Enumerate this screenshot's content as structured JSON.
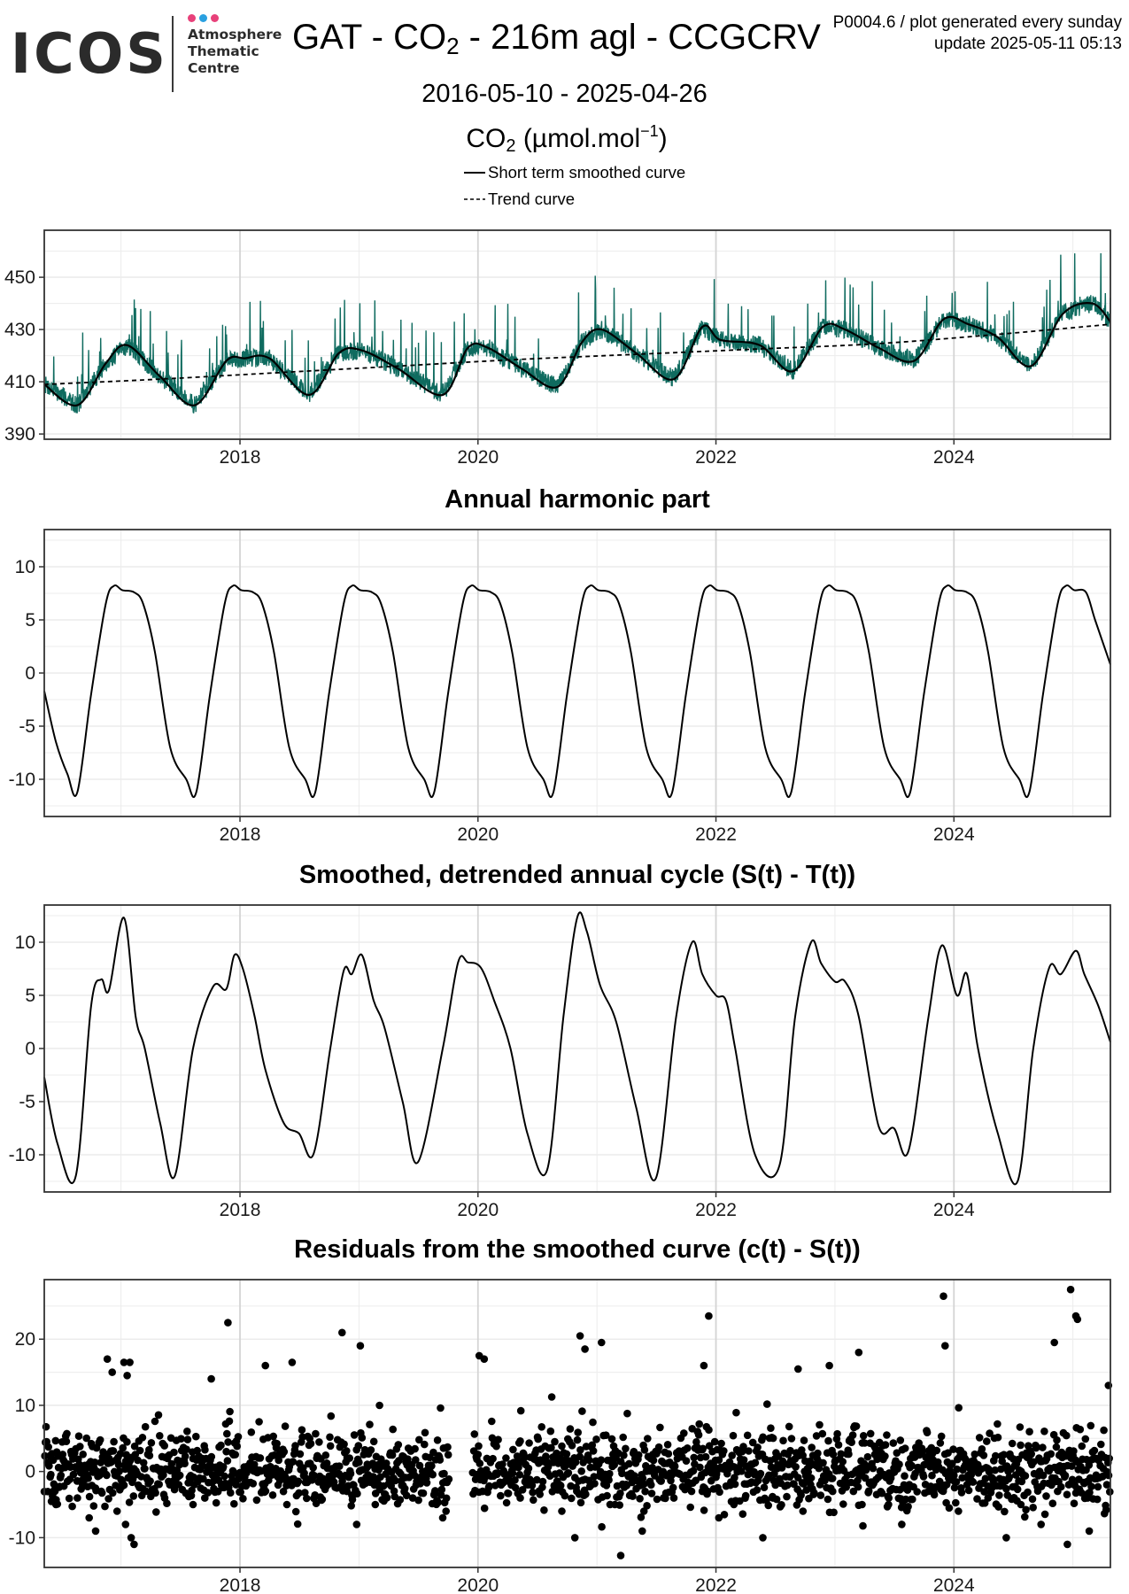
{
  "header": {
    "logo_text": "ICOS",
    "logo_subtitle": "Atmosphere\nThematic\nCentre",
    "logo_dot_colors": [
      "#e8417a",
      "#2aa0e0",
      "#e8417a"
    ],
    "title_prefix": "GAT - CO",
    "title_sub": "2",
    "title_suffix": " - 216m agl - CCGCRV",
    "meta_line1": "P0004.6 / plot generated every sunday",
    "meta_line2": "update  2025-05-11 05:13",
    "date_range": "2016-05-10 - 2025-04-26",
    "unit_prefix": "CO",
    "unit_sub": "2",
    "unit_mid": " (µmol.mol",
    "unit_sup": "−1",
    "unit_suffix": ")"
  },
  "legend": {
    "items": [
      {
        "label": "Short term smoothed curve",
        "style": "solid"
      },
      {
        "label": "Trend curve",
        "style": "dashed"
      }
    ]
  },
  "colors": {
    "raw_series": "#0f6b5f",
    "curve": "#000000",
    "grid_major": "#d4d4d4",
    "grid_minor": "#ececec",
    "border": "#333333"
  },
  "chart_data": [
    {
      "id": "co2",
      "type": "line",
      "title": "",
      "xlabel": "",
      "ylabel": "",
      "xlim": [
        "2016-05-10",
        "2025-04-26"
      ],
      "ylim": [
        388,
        468
      ],
      "yticks": [
        390,
        410,
        430,
        450
      ],
      "xticks": [
        "2018",
        "2020",
        "2022",
        "2024"
      ],
      "grid": true,
      "series": [
        {
          "name": "Short term smoothed curve",
          "style": "solid",
          "x": [
            "2016-05-10",
            "2016-08-20",
            "2016-11-15",
            "2017-01-20",
            "2017-05-01",
            "2017-08-15",
            "2017-11-20",
            "2018-01-15",
            "2018-04-01",
            "2018-08-01",
            "2018-11-01",
            "2019-01-10",
            "2019-05-01",
            "2019-09-15",
            "2019-12-01",
            "2020-02-01",
            "2020-05-15",
            "2020-09-01",
            "2020-11-15",
            "2021-01-15",
            "2021-05-01",
            "2021-08-25",
            "2021-11-20",
            "2022-01-15",
            "2022-05-15",
            "2022-08-25",
            "2022-11-25",
            "2023-02-01",
            "2023-05-15",
            "2023-09-01",
            "2023-12-01",
            "2024-02-15",
            "2024-05-15",
            "2024-08-25",
            "2024-12-01",
            "2025-03-01",
            "2025-04-26"
          ],
          "y": [
            409,
            401,
            417,
            424,
            412,
            401,
            418,
            419,
            419,
            405,
            421,
            422,
            415,
            405,
            423,
            423,
            415,
            408,
            425,
            430,
            421,
            411,
            431,
            426,
            424,
            414,
            431,
            430,
            423,
            418,
            434,
            432,
            427,
            416,
            436,
            440,
            433
          ]
        },
        {
          "name": "Trend curve",
          "style": "dashed",
          "x": [
            "2016-05-10",
            "2017-05-01",
            "2018-05-01",
            "2019-05-01",
            "2020-05-01",
            "2021-05-01",
            "2022-05-01",
            "2023-05-01",
            "2024-05-01",
            "2025-04-26"
          ],
          "y": [
            409,
            411,
            413.5,
            416,
            418.5,
            420.5,
            422.5,
            424.5,
            428,
            432
          ]
        }
      ]
    },
    {
      "id": "harmonic",
      "type": "line",
      "title": "Annual harmonic part",
      "xlabel": "",
      "ylabel": "",
      "xlim": [
        "2016-05-10",
        "2025-04-26"
      ],
      "ylim": [
        -13.5,
        13.5
      ],
      "yticks": [
        -10,
        -5,
        0,
        5,
        10
      ],
      "xticks": [
        "2018",
        "2020",
        "2022",
        "2024"
      ],
      "grid": true,
      "series": [
        {
          "x": [
            "2016-05-10",
            "2016-06-15",
            "2016-07-20",
            "2016-08-20",
            "2016-10-01",
            "2016-11-15",
            "2016-12-10",
            "2017-01-05",
            "2017-02-10",
            "2017-03-10",
            "2017-04-15",
            "2017-06-01",
            "2017-07-20",
            "2017-08-20",
            "2017-10-01",
            "2017-11-15",
            "2017-12-10",
            "2018-01-05",
            "2018-02-10",
            "2018-03-10",
            "2018-04-15",
            "2018-06-01",
            "2018-07-20",
            "2018-08-20",
            "2018-10-01",
            "2018-11-15",
            "2018-12-10",
            "2019-01-05",
            "2019-02-10",
            "2019-03-10",
            "2019-04-15",
            "2019-06-01",
            "2019-07-20",
            "2019-08-20",
            "2019-10-01",
            "2019-11-15",
            "2019-12-10",
            "2020-01-05",
            "2020-02-10",
            "2020-03-10",
            "2020-04-15",
            "2020-06-01",
            "2020-07-20",
            "2020-08-20",
            "2020-10-01",
            "2020-11-15",
            "2020-12-10",
            "2021-01-05",
            "2021-02-10",
            "2021-03-10",
            "2021-04-15",
            "2021-06-01",
            "2021-07-20",
            "2021-08-20",
            "2021-10-01",
            "2021-11-15",
            "2021-12-10",
            "2022-01-05",
            "2022-02-10",
            "2022-03-10",
            "2022-04-15",
            "2022-06-01",
            "2022-07-20",
            "2022-08-20",
            "2022-10-01",
            "2022-11-15",
            "2022-12-10",
            "2023-01-05",
            "2023-02-10",
            "2023-03-10",
            "2023-04-15",
            "2023-06-01",
            "2023-07-20",
            "2023-08-20",
            "2023-10-01",
            "2023-11-15",
            "2023-12-10",
            "2024-01-05",
            "2024-02-10",
            "2024-03-10",
            "2024-04-15",
            "2024-06-01",
            "2024-07-20",
            "2024-08-20",
            "2024-10-01",
            "2024-11-15",
            "2024-12-10",
            "2025-01-05",
            "2025-02-10",
            "2025-03-10",
            "2025-04-26"
          ],
          "y": [
            -1.7,
            -6.5,
            -9.5,
            -11.2,
            -2,
            6.5,
            8.2,
            7.8,
            7.6,
            6.5,
            2,
            -7,
            -10,
            -11.2,
            -2,
            6.5,
            8.2,
            7.8,
            7.6,
            6.5,
            2,
            -7,
            -10,
            -11.2,
            -2,
            6.5,
            8.2,
            7.8,
            7.6,
            6.5,
            2,
            -7,
            -10,
            -11.2,
            -2,
            6.5,
            8.2,
            7.8,
            7.6,
            6.5,
            2,
            -7,
            -10,
            -11.2,
            -2,
            6.5,
            8.2,
            7.8,
            7.6,
            6.5,
            2,
            -7,
            -10,
            -11.2,
            -2,
            6.5,
            8.2,
            7.8,
            7.6,
            6.5,
            2,
            -7,
            -10,
            -11.2,
            -2,
            6.5,
            8.2,
            7.8,
            7.6,
            6.5,
            2,
            -7,
            -10,
            -11.2,
            -2,
            6.5,
            8.2,
            7.8,
            7.6,
            6.5,
            2,
            -7,
            -10,
            -11.2,
            -2,
            6.5,
            8.2,
            7.8,
            7.6,
            5,
            0.8
          ]
        }
      ]
    },
    {
      "id": "detrended",
      "type": "line",
      "title": "Smoothed, detrended annual cycle (S(t) - T(t))",
      "xlabel": "",
      "ylabel": "",
      "xlim": [
        "2016-05-10",
        "2025-04-26"
      ],
      "ylim": [
        -13.5,
        13.5
      ],
      "yticks": [
        -10,
        -5,
        0,
        5,
        10
      ],
      "xticks": [
        "2018",
        "2020",
        "2022",
        "2024"
      ],
      "grid": true,
      "series": [
        {
          "x": [
            "2016-05-10",
            "2016-06-20",
            "2016-08-15",
            "2016-10-01",
            "2016-11-01",
            "2016-11-25",
            "2017-01-10",
            "2017-02-15",
            "2017-03-15",
            "2017-05-01",
            "2017-06-15",
            "2017-08-10",
            "2017-10-10",
            "2017-11-20",
            "2017-12-15",
            "2018-01-10",
            "2018-02-15",
            "2018-03-20",
            "2018-05-15",
            "2018-07-01",
            "2018-08-15",
            "2018-10-05",
            "2018-11-15",
            "2018-12-10",
            "2019-01-10",
            "2019-02-15",
            "2019-03-20",
            "2019-05-15",
            "2019-07-01",
            "2019-09-15",
            "2019-11-01",
            "2019-12-01",
            "2020-01-10",
            "2020-02-20",
            "2020-04-10",
            "2020-06-01",
            "2020-08-01",
            "2020-09-20",
            "2020-11-01",
            "2020-12-01",
            "2021-01-10",
            "2021-03-01",
            "2021-05-01",
            "2021-07-01",
            "2021-09-01",
            "2021-10-20",
            "2021-11-20",
            "2022-01-01",
            "2022-02-01",
            "2022-03-01",
            "2022-05-01",
            "2022-07-15",
            "2022-09-01",
            "2022-10-20",
            "2022-11-20",
            "2023-01-01",
            "2023-02-01",
            "2023-03-15",
            "2023-05-15",
            "2023-07-01",
            "2023-08-15",
            "2023-10-15",
            "2023-11-25",
            "2024-01-10",
            "2024-02-10",
            "2024-03-15",
            "2024-05-15",
            "2024-07-15",
            "2024-09-01",
            "2024-10-20",
            "2024-11-25",
            "2025-01-10",
            "2025-02-05",
            "2025-03-20",
            "2025-04-26"
          ],
          "y": [
            -2.7,
            -9,
            -12,
            4,
            6.5,
            5.5,
            12.3,
            3,
            0,
            -7,
            -12,
            0,
            5.8,
            5.6,
            8.8,
            7.5,
            3,
            -2,
            -7,
            -8,
            -9.9,
            0,
            7.3,
            7,
            8.8,
            4.5,
            2,
            -5,
            -10.7,
            0,
            8.1,
            8.1,
            7.6,
            4.5,
            0,
            -8,
            -11.4,
            3,
            12.3,
            11,
            6,
            2.5,
            -5.5,
            -12.2,
            3,
            10,
            7,
            5,
            4.5,
            0,
            -10,
            -11,
            3,
            10,
            8,
            6.3,
            6.3,
            3,
            -7.3,
            -7.5,
            -9.6,
            3,
            9.7,
            5,
            7,
            0,
            -8,
            -12.5,
            0,
            7.6,
            7,
            9.2,
            7,
            4,
            0.6
          ]
        }
      ]
    },
    {
      "id": "residuals",
      "type": "scatter",
      "title": "Residuals from the smoothed curve (c(t) - S(t))",
      "xlabel": "",
      "ylabel": "",
      "xlim": [
        "2016-05-10",
        "2025-04-26"
      ],
      "ylim": [
        -14.5,
        29
      ],
      "yticks": [
        -10,
        0,
        10,
        20
      ],
      "xticks": [
        "2018",
        "2020",
        "2022",
        "2024"
      ],
      "grid": true,
      "series": [
        {
          "x": [
            "2016-11-20",
            "2016-12-05",
            "2017-01-10",
            "2017-01-20",
            "2017-01-28",
            "2017-11-25",
            "2017-10-05",
            "2018-03-20",
            "2018-06-10",
            "2018-11-10",
            "2019-01-05",
            "2019-03-05",
            "2020-01-05",
            "2020-01-20",
            "2020-11-10",
            "2020-11-25",
            "2021-01-15",
            "2021-12-10",
            "2021-11-25",
            "2022-09-10",
            "2022-12-15",
            "2023-03-15",
            "2023-11-30",
            "2023-12-05",
            "2024-11-05",
            "2024-12-25",
            "2025-01-10",
            "2025-01-15",
            "2025-04-20",
            "2016-10-15",
            "2017-02-01",
            "2017-02-10",
            "2018-12-25",
            "2019-09-15",
            "2020-10-25",
            "2021-03-15",
            "2021-05-20",
            "2022-01-10",
            "2022-05-25",
            "2023-07-25",
            "2024-06-10",
            "2024-09-25",
            "2024-12-15",
            "2025-02-20",
            "2016-06-15",
            "2016-08-20",
            "2016-09-25",
            "2016-11-01",
            "2016-12-20",
            "2017-01-15",
            "2017-05-15",
            "2017-08-10",
            "2017-09-15",
            "2017-12-20",
            "2018-05-25",
            "2018-11-25",
            "2019-02-20",
            "2019-06-15",
            "2019-09-25",
            "2020-01-15",
            "2020-05-10",
            "2020-09-15",
            "2020-12-15",
            "2021-02-25",
            "2021-05-25",
            "2021-08-25",
            "2021-11-20",
            "2022-02-25",
            "2022-06-25",
            "2022-09-25",
            "2022-12-25",
            "2023-03-25",
            "2023-06-15",
            "2023-10-15",
            "2024-01-15",
            "2024-04-15",
            "2024-07-25",
            "2024-11-15",
            "2025-02-15",
            "2025-04-15"
          ],
          "y": [
            17,
            15,
            16.5,
            14.5,
            16.5,
            22.5,
            14,
            16,
            16.5,
            21,
            19,
            10,
            17.5,
            17,
            20.5,
            18.5,
            19.5,
            23.5,
            16,
            15.5,
            16,
            18,
            26.5,
            19,
            19.5,
            27.5,
            23.5,
            23,
            13,
            -9,
            -10,
            -11,
            -8,
            -7,
            -10,
            -12.7,
            -9,
            -7,
            -10,
            -8,
            -10,
            -8,
            -11,
            -9,
            -5,
            -4,
            -7,
            -3,
            -6,
            -8,
            -4,
            -5,
            -4,
            -2,
            -5,
            -3,
            -5,
            -4,
            -6,
            -3,
            -4,
            -6,
            -2,
            -5,
            -6,
            -4,
            -3,
            -5,
            -4,
            -6,
            -3,
            -5,
            -4,
            -3,
            -6,
            -4,
            -5,
            -3,
            -4,
            -2
          ]
        }
      ]
    }
  ]
}
